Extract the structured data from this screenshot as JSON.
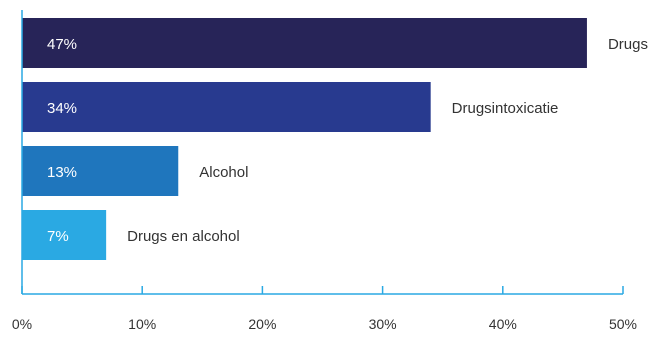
{
  "chart_data": {
    "type": "bar",
    "orientation": "horizontal",
    "categories": [
      "Drugs",
      "Drugsintoxicatie",
      "Alcohol",
      "Drugs en alcohol"
    ],
    "values": [
      47,
      34,
      13,
      7
    ],
    "value_labels": [
      "47%",
      "34%",
      "13%",
      "7%"
    ],
    "colors": [
      "#272458",
      "#283a8f",
      "#1f76bd",
      "#2aa9e3"
    ],
    "axis_color": "#2aa9e3",
    "xlim": [
      0,
      50
    ],
    "xticks": [
      0,
      10,
      20,
      30,
      40,
      50
    ],
    "xtick_labels": [
      "0%",
      "10%",
      "20%",
      "30%",
      "40%",
      "50%"
    ],
    "grid": false,
    "legend": "none"
  }
}
